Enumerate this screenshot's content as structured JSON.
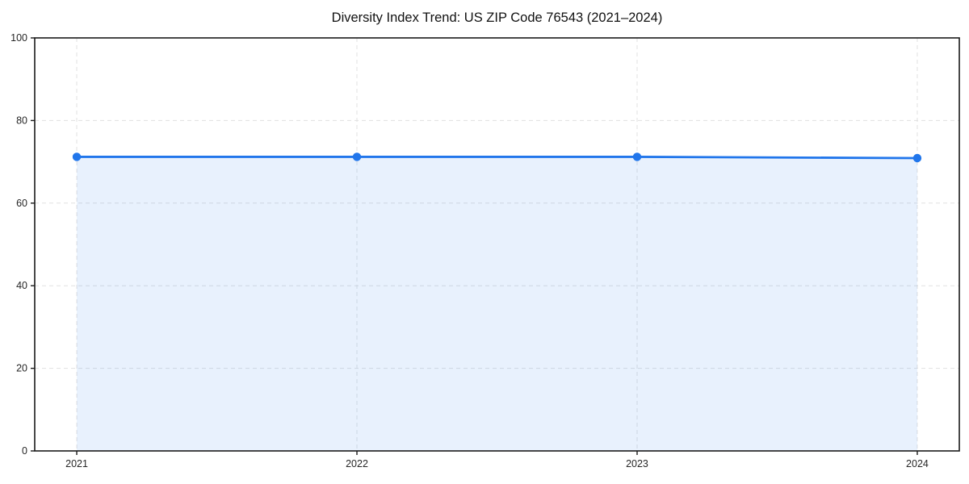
{
  "page": {
    "background": "#ffffff"
  },
  "chart_data": {
    "type": "area",
    "title": "Diversity Index Trend: US ZIP Code 76543 (2021–2024)",
    "x": [
      2021,
      2022,
      2023,
      2024
    ],
    "values": [
      71.2,
      71.2,
      71.2,
      70.9
    ],
    "categories": [
      "2021",
      "2022",
      "2023",
      "2024"
    ],
    "xlabel": "",
    "ylabel": "",
    "xlim": [
      2020.85,
      2024.15
    ],
    "ylim": [
      0,
      100
    ],
    "xticks": [
      2021,
      2022,
      2023,
      2024
    ],
    "yticks": [
      0,
      20,
      40,
      60,
      80,
      100
    ],
    "grid": true,
    "grid_style": "dashed",
    "legend_position": "none",
    "colors": {
      "line": "#2176eb",
      "marker": "#2176eb",
      "fill": "rgba(33, 118, 235, 0.10)",
      "grid": "#e1e1e1",
      "spine": "#1a1a1a",
      "tick_label": "#262626",
      "title": "#111111",
      "background": "#ffffff"
    },
    "line_width": 2.8,
    "marker_radius": 5.2
  }
}
